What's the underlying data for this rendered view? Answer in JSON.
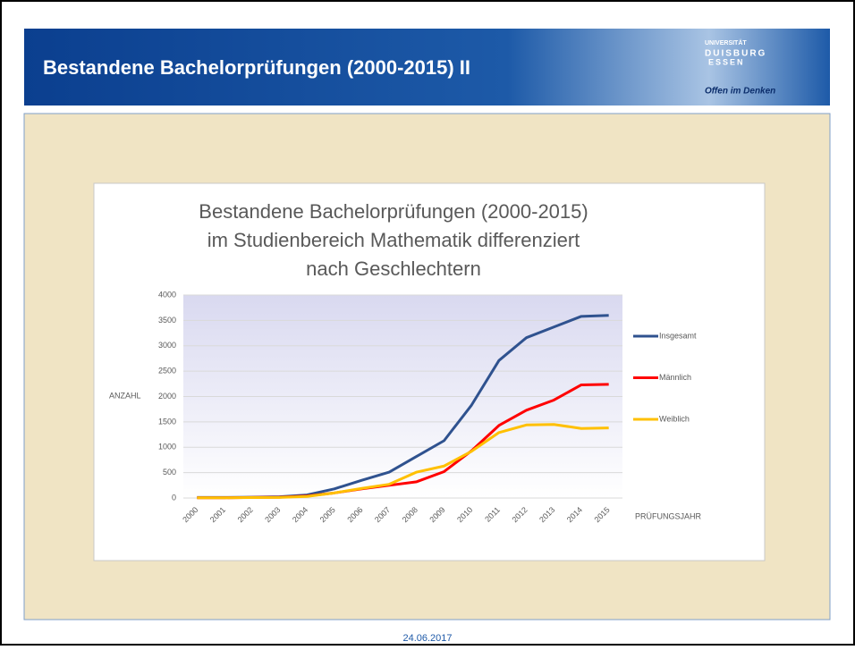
{
  "header": {
    "title": "Bestandene Bachelorprüfungen (2000-2015) II",
    "logo": {
      "line1": "UNIVERSITÄT",
      "line2": "DUISBURG",
      "line3": "ESSEN",
      "slogan": "Offen im Denken"
    }
  },
  "footer": {
    "date": "24.06.2017"
  },
  "chart_data": {
    "type": "line",
    "title": [
      "Bestandene Bachelorprüfungen (2000-2015)",
      "im Studienbereich Mathematik differenziert",
      "nach Geschlechtern"
    ],
    "y_label": "ANZAHL",
    "x_label": "PRÜFUNGSJAHR",
    "categories": [
      "2000",
      "2001",
      "2002",
      "2003",
      "2004",
      "2005",
      "2006",
      "2007",
      "2008",
      "2009",
      "2010",
      "2011",
      "2012",
      "2013",
      "2014",
      "2015"
    ],
    "series": [
      {
        "name": "Insgesamt",
        "color": "#2f528f",
        "values": [
          10,
          10,
          15,
          25,
          60,
          180,
          350,
          510,
          820,
          1130,
          1830,
          2710,
          3160,
          3370,
          3580,
          3600
        ]
      },
      {
        "name": "Männlich",
        "color": "#ff0000",
        "values": [
          5,
          5,
          10,
          15,
          40,
          100,
          180,
          250,
          320,
          520,
          930,
          1430,
          1730,
          1930,
          2230,
          2240
        ]
      },
      {
        "name": "Weiblich",
        "color": "#ffc000",
        "values": [
          5,
          5,
          8,
          12,
          30,
          100,
          190,
          270,
          510,
          630,
          920,
          1290,
          1440,
          1450,
          1370,
          1380
        ]
      }
    ],
    "ylim": [
      0,
      4000
    ],
    "yticks": [
      0,
      500,
      1000,
      1500,
      2000,
      2500,
      3000,
      3500,
      4000
    ],
    "grid": true,
    "legend": "right"
  }
}
